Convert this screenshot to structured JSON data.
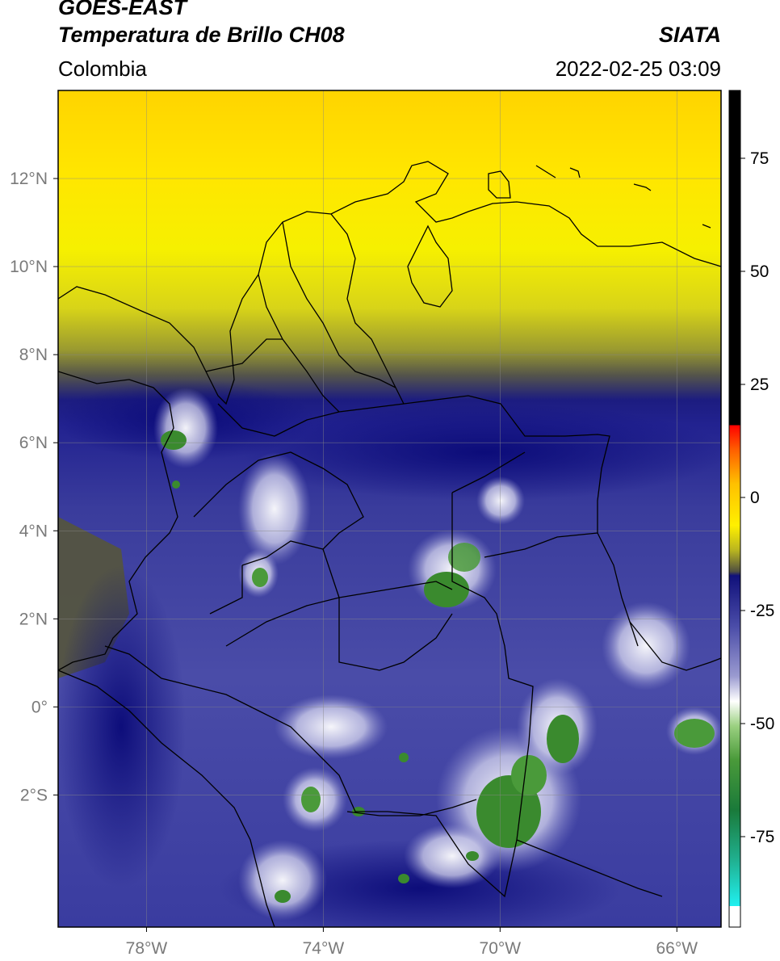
{
  "header": {
    "title_line1": "GOES-EAST",
    "title_line2": "Temperatura de Brillo CH08",
    "brand": "SIATA",
    "region": "Colombia",
    "datetime": "2022-02-25 03:09"
  },
  "map": {
    "lon_range": [
      -80,
      -65
    ],
    "lat_range": [
      -5,
      14
    ],
    "lon_ticks": [
      {
        "value": -78,
        "label": "78°W"
      },
      {
        "value": -74,
        "label": "74°W"
      },
      {
        "value": -70,
        "label": "70°W"
      },
      {
        "value": -66,
        "label": "66°W"
      }
    ],
    "lat_ticks": [
      {
        "value": 12,
        "label": "12°N"
      },
      {
        "value": 10,
        "label": "10°N"
      },
      {
        "value": 8,
        "label": "8°N"
      },
      {
        "value": 6,
        "label": "6°N"
      },
      {
        "value": 4,
        "label": "4°N"
      },
      {
        "value": 2,
        "label": "2°N"
      },
      {
        "value": 0,
        "label": "0°"
      },
      {
        "value": -2,
        "label": "2°S"
      }
    ],
    "gridlines": true
  },
  "colorbar": {
    "range": [
      -95,
      90
    ],
    "tick_labels": [
      {
        "value": 75,
        "label": "75"
      },
      {
        "value": 50,
        "label": "50"
      },
      {
        "value": 25,
        "label": "25"
      },
      {
        "value": 0,
        "label": "0"
      },
      {
        "value": -25,
        "label": "-25"
      },
      {
        "value": -50,
        "label": "-50"
      },
      {
        "value": -75,
        "label": "-75"
      }
    ]
  },
  "colors": {
    "cold_green": "#3a8a2e",
    "cloud_white": "#f2f2f8",
    "mid_blue": "#5a5cb0",
    "deep_navy": "#13137e",
    "dark_gray": "#3a3a3a",
    "olive": "#8a8a22",
    "bright_yellow": "#ffee00",
    "orange_yellow": "#ffd000",
    "red": "#ff2000",
    "black": "#000000",
    "cyan": "#20e0e0"
  }
}
